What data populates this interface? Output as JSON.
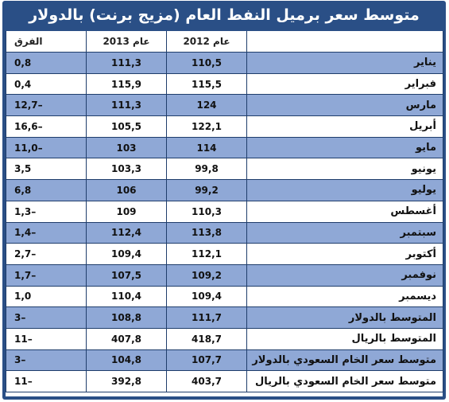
{
  "title": "متوسط سعر برميل النفط العام (مزيج برنت) بالدولار",
  "headers": {
    "diff": "الفرق",
    "y2013": "عام 2013",
    "y2012": "عام 2012",
    "label": ""
  },
  "rows": [
    {
      "label": "يناير",
      "y2012": "110,5",
      "y2013": "111,3",
      "diff": "0,8"
    },
    {
      "label": "فبراير",
      "y2012": "115,5",
      "y2013": "115,9",
      "diff": "0,4"
    },
    {
      "label": "مارس",
      "y2012": "124",
      "y2013": "111,3",
      "diff": "12,7–"
    },
    {
      "label": "أبريل",
      "y2012": "122,1",
      "y2013": "105,5",
      "diff": "16,6–"
    },
    {
      "label": "مايو",
      "y2012": "114",
      "y2013": "103",
      "diff": "11,0–"
    },
    {
      "label": "يونيو",
      "y2012": "99,8",
      "y2013": "103,3",
      "diff": "3,5"
    },
    {
      "label": "يوليو",
      "y2012": "99,2",
      "y2013": "106",
      "diff": "6,8"
    },
    {
      "label": "أغسطس",
      "y2012": "110,3",
      "y2013": "109",
      "diff": "1,3–"
    },
    {
      "label": "سبتمبر",
      "y2012": "113,8",
      "y2013": "112,4",
      "diff": "1,4–"
    },
    {
      "label": "أكتوبر",
      "y2012": "112,1",
      "y2013": "109,4",
      "diff": "2,7–"
    },
    {
      "label": "نوفمبر",
      "y2012": "109,2",
      "y2013": "107,5",
      "diff": "1,7–"
    },
    {
      "label": "ديسمبر",
      "y2012": "109,4",
      "y2013": "110,4",
      "diff": "1,0"
    },
    {
      "label": "المتوسط بالدولار",
      "y2012": "111,7",
      "y2013": "108,8",
      "diff": "3–"
    },
    {
      "label": "المتوسط بالريال",
      "y2012": "418,7",
      "y2013": "407,8",
      "diff": "11–"
    },
    {
      "label": "متوسط سعر الخام السعودي بالدولار",
      "y2012": "107,7",
      "y2013": "104,8",
      "diff": "3–"
    },
    {
      "label": "متوسط سعر الخام السعودي بالريال",
      "y2012": "403,7",
      "y2013": "392,8",
      "diff": "11–"
    }
  ],
  "colors": {
    "frame": "#2a4f86",
    "band": "#8fa8d6",
    "plain": "#ffffff"
  }
}
